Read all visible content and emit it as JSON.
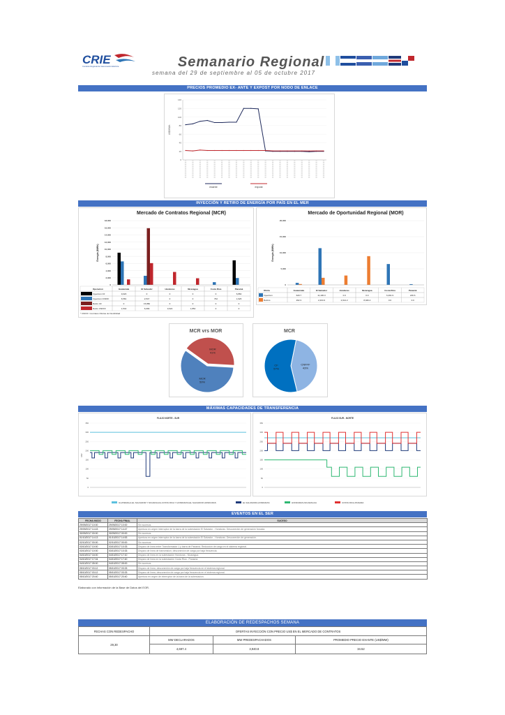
{
  "header": {
    "logo_text": "CRIE",
    "logo_sub": "Comisión Regional de Interconexión Eléctrica",
    "title": "Semanario Regional",
    "subtitle": "semana del 29 de septiembre al 05 de octubre 2017",
    "colors": {
      "title": "#555555",
      "subtitle": "#666666",
      "accent": "#4472c4"
    }
  },
  "sections": {
    "precios": "PRECIOS PROMEDIO EX- ANTE Y EXPOST POR NODO DE ENLACE",
    "inyeccion": "INYECCIÓN Y RETIRO DE ENERGÍA POR PAÍS EN EL MER",
    "capacidades": "MÁXIMAS CAPACIDADES DE TRANSFERENCIA",
    "eventos": "EVENTOS EN EL SER",
    "redespachos": "ELABORACIÓN DE REDESPACHOS SEMANA"
  },
  "price_chart": {
    "chart_data": {
      "type": "line",
      "ylabel": "US$/MWh",
      "ylim": [
        0,
        140
      ],
      "yticks": [
        0,
        20,
        40,
        60,
        80,
        100,
        120,
        140
      ],
      "categories": [
        "1",
        "2",
        "3",
        "4",
        "5",
        "6",
        "7",
        "8",
        "9",
        "10",
        "11",
        "12",
        "13",
        "14",
        "15",
        "16",
        "17",
        "18",
        "19",
        "20"
      ],
      "series": [
        {
          "name": "exante",
          "color": "#1f2a5c",
          "values": [
            82,
            84,
            90,
            92,
            87,
            87,
            88,
            88,
            120,
            120,
            119,
            21,
            20,
            20,
            20,
            20,
            20,
            19,
            20,
            20
          ]
        },
        {
          "name": "expost",
          "color": "#c0272d",
          "values": [
            22,
            21,
            23,
            22,
            22,
            22,
            22,
            22,
            22,
            22,
            22,
            22,
            21,
            21,
            21,
            21,
            21,
            21,
            21,
            21
          ]
        }
      ],
      "legend": "bottom"
    }
  },
  "mcr_chart": {
    "chart_data": {
      "type": "bar",
      "title": "Mercado de Contratos Regional (MCR)",
      "ylabel": "Energía (MWh)",
      "ylim": [
        0,
        18000
      ],
      "yticks": [
        0,
        2000,
        4000,
        6000,
        8000,
        10000,
        12000,
        14000,
        16000,
        18000
      ],
      "categories": [
        "Guatemala",
        "El Salvador",
        "Honduras",
        "Nicaragua",
        "Costa Rica",
        "Panamá"
      ],
      "series": [
        {
          "name": "Inyeccion CF",
          "color": "#000000",
          "values": [
            9020,
            0,
            0,
            0,
            0,
            6882
          ]
        },
        {
          "name": "Inyeccion CNFFF",
          "color": "#2e75b6",
          "values": [
            6581,
            2547,
            0,
            0,
            762,
            1926
          ]
        },
        {
          "name": "Retiro CF",
          "color": "#7b1f1f",
          "values": [
            0,
            15882,
            0,
            0,
            0,
            0
          ]
        },
        {
          "name": "Retiro CNFFF",
          "color": "#c0272d",
          "values": [
            1542,
            6099,
            3622,
            1854,
            0,
            0
          ]
        }
      ],
      "table_header": [
        "Operacion",
        "Guatemala",
        "El Salvador",
        "Honduras",
        "Nicaragua",
        "Costa Rica",
        "Panamá"
      ],
      "table_rows": [
        [
          "Inyeccion CF",
          "9,020",
          "0",
          "0",
          "0",
          "0",
          "6,882"
        ],
        [
          "Inyeccion CNFFF",
          "6,581",
          "2,547",
          "0",
          "0",
          "762",
          "1,926"
        ],
        [
          "Retiro CF",
          "0",
          "15,882",
          "0",
          "0",
          "0",
          "0"
        ],
        [
          "Retiro CNFFF",
          "1,542",
          "6,099",
          "3,622",
          "1,854",
          "0",
          "0"
        ]
      ],
      "note": "* CNFFF: Contratos Ofertas de Flexibilidad"
    }
  },
  "mor_chart": {
    "chart_data": {
      "type": "bar",
      "title": "Mercado de Oportunidad Regional (MOR)",
      "ylabel": "Energía (MWh)",
      "ylim": [
        0,
        20000
      ],
      "yticks": [
        0,
        5000,
        10000,
        15000,
        20000
      ],
      "categories": [
        "Guatemala",
        "El Salvador",
        "Honduras",
        "Nicaragua",
        "Costa Rica",
        "Panamá"
      ],
      "series": [
        {
          "name": "Inyeccion",
          "color": "#2e75b6",
          "values": [
            629.7,
            11430,
            0,
            0,
            6491.9,
            226.6
          ]
        },
        {
          "name": "Retiros",
          "color": "#ed7d31",
          "values": [
            262.3,
            2204.9,
            2914.2,
            8946.2,
            0,
            0
          ]
        }
      ],
      "table_header": [
        "Oferta",
        "Guatemala",
        "El Salvador",
        "Honduras",
        "Nicaragua",
        "Costa Rica",
        "Panamá"
      ],
      "table_rows": [
        [
          "Inyeccion",
          "629.7",
          "11,430.0",
          "0.0",
          "0.0",
          "6,491.9",
          "226.6"
        ],
        [
          "Retiros",
          "262.3",
          "2,204.9",
          "2,914.2",
          "8,946.2",
          "0.0",
          "0.0"
        ]
      ]
    }
  },
  "pie1": {
    "chart_data": {
      "type": "pie",
      "title": "MCR vrs MOR",
      "slices": [
        {
          "label": "MOR",
          "value": 41,
          "label_text": "41%",
          "color": "#c0504d"
        },
        {
          "label": "MCR",
          "value": 59,
          "label_text": "59%",
          "color": "#4f81bd"
        }
      ]
    }
  },
  "pie2": {
    "chart_data": {
      "type": "pie",
      "title": "MCR",
      "slices": [
        {
          "label": "CNFFF",
          "value": 43,
          "label_text": "43%",
          "color": "#8eb4e3"
        },
        {
          "label": "CF",
          "value": 57,
          "label_text": "57%",
          "color": "#0070c0"
        }
      ]
    }
  },
  "cap_left": {
    "chart_data": {
      "type": "line",
      "title": "FLUJO NORTE - SUR",
      "ylabel": "MW",
      "ylim": [
        0,
        350
      ],
      "yticks": [
        0,
        50,
        100,
        150,
        200,
        250,
        300,
        350
      ],
      "series": [
        {
          "name": "GUATEMALA-EL SALVADOR Y NICARAGUA-COSTA RICA Y HONDURAS-EL SALVADOR HONDURAS",
          "color": "#5bc0de",
          "pattern": "flat",
          "values": [
            300
          ]
        },
        {
          "name": "EL SALVADOR-HONDURAS",
          "color": "#1f3a7a",
          "pattern": "steps",
          "values": [
            160,
            190,
            60
          ]
        },
        {
          "name": "HONDURAS-NICARAGUA",
          "color": "#2eb872",
          "pattern": "steps",
          "values": [
            200,
            180
          ]
        }
      ]
    }
  },
  "cap_right": {
    "chart_data": {
      "type": "line",
      "title": "FLUJO SUR - NORTE",
      "ylim": [
        0,
        350
      ],
      "yticks": [
        0,
        50,
        100,
        150,
        200,
        250,
        300,
        350
      ],
      "series": [
        {
          "name": "A",
          "color": "#5bc0de",
          "values": [
            270
          ]
        },
        {
          "name": "B",
          "color": "#1f3a7a",
          "values": [
            200,
            240
          ]
        },
        {
          "name": "C",
          "color": "#2eb872",
          "values": [
            150,
            60,
            110
          ]
        },
        {
          "name": "D",
          "color": "#e03030",
          "values": [
            300,
            240
          ]
        }
      ]
    }
  },
  "cap_legend": [
    {
      "label": "GUATEMALA-EL SALVADOR Y NICARAGUA-COSTA RICA Y HONDURAS-EL SALVADOR HONDURAS",
      "color": "#5bc0de"
    },
    {
      "label": "EL SALVADOR-HONDURAS",
      "color": "#1f3a7a"
    },
    {
      "label": "HONDURAS-NICARAGUA",
      "color": "#2eb872"
    },
    {
      "label": "COSTA RICA-PANAMA",
      "color": "#e03030"
    }
  ],
  "events": {
    "headers": [
      "FECHA INICIO",
      "FECHA FINAL",
      "SUCESO"
    ],
    "rows": [
      {
        "start": "29/09/2017 10:00",
        "end": "29/09/2017 10:00",
        "desc": "Sin sucesos."
      },
      {
        "start": "29/09/2017 14:43",
        "end": "29/09/2017 14:47",
        "desc": "Apertura en origen interruptor de la barra de la subestación El Salvador - Honduras. Desconexión de generación forzada."
      },
      {
        "start": "30/09/2017 00:00",
        "end": "30/09/2017 00:00",
        "desc": "Sin sucesos."
      },
      {
        "start": "01/10/2017 14:13",
        "end": "01/10/2017 14:53",
        "desc": "Apertura en origen interruptor de la barra de la subestación El Salvador - Honduras. Desconexión de generación."
      },
      {
        "start": "02/10/2017 00:00",
        "end": "02/10/2017 00:00",
        "desc": "Sin sucesos."
      },
      {
        "start": "03/10/2017 10:00",
        "end": "03/10/2017 10:33",
        "desc": "Disparo de línea entre Transformador 1 y barra de Panamá. Reducción de carga en el sistema regional."
      },
      {
        "start": "03/10/2017 10:00",
        "end": "03/10/2017 10:33",
        "desc": "Disparo de línea de transmisión; desconexión de carga por baja frecuencia."
      },
      {
        "start": "04/10/2017 16:00",
        "end": "04/10/2017 17:10",
        "desc": "Disparo de línea en la subestación Honduras - Nicaragua."
      },
      {
        "start": "04/10/2017 17:04",
        "end": "04/10/2017 17:40",
        "desc": "Disparo de línea en la subestación Costa Rica - Panamá."
      },
      {
        "start": "04/10/2017 05:00",
        "end": "04/10/2017 05:00",
        "desc": "Sin sucesos."
      },
      {
        "start": "05/10/2017 03:12",
        "end": "05/10/2017 03:33",
        "desc": "Disparo de línea; desconexión de carga por baja frecuencia en el sistema regional."
      },
      {
        "start": "05/10/2017 03:12",
        "end": "05/10/2017 03:33",
        "desc": "Disparo de línea; desconexión de carga por baja frecuencia en el sistema regional."
      },
      {
        "start": "05/10/2017 20:40",
        "end": "05/10/2017 20:40",
        "desc": "Apertura en origen de interruptor de la barra de la subestación."
      }
    ],
    "footnote": "Elaborado con información de la Base de Datos del EOR."
  },
  "redespachos": {
    "col_dates": "FECHAS CON REDESPACHO",
    "col_offers": "OFERTAS INYECCIÓN CON PRECIO US$ EN EL MERCADO DE CONTRATOS",
    "sub_declarados": "MW DECLARADOS",
    "sub_predespachados": "MW PREDESPACHADOS",
    "sub_precio": "PROMEDIO PRECIO EXANTE (US$/MW)",
    "dates": "29,30",
    "declarados": "4,697.4",
    "predespachados": "3,940.8",
    "precio": "34.52"
  }
}
